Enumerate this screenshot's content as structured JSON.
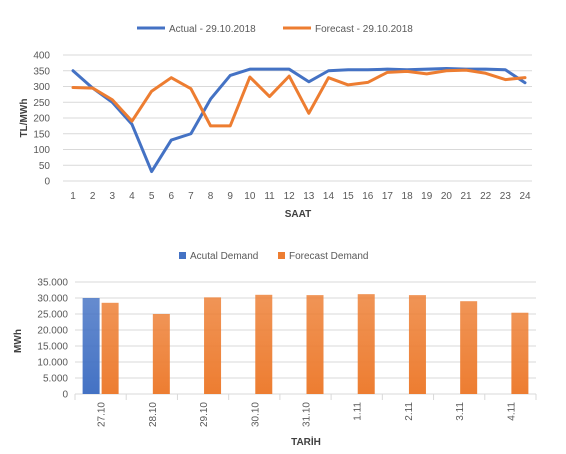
{
  "chart_data": [
    {
      "type": "line",
      "title": "",
      "xlabel": "SAAT",
      "ylabel": "TL/MWh",
      "ylim": [
        0,
        400
      ],
      "y_ticks": [
        "0",
        "50",
        "100",
        "150",
        "200",
        "250",
        "300",
        "350",
        "400"
      ],
      "grid": true,
      "legend_position": "top",
      "x": [
        "1",
        "2",
        "3",
        "4",
        "5",
        "6",
        "7",
        "8",
        "9",
        "10",
        "11",
        "12",
        "13",
        "14",
        "15",
        "16",
        "17",
        "18",
        "19",
        "20",
        "21",
        "22",
        "23",
        "24"
      ],
      "series": [
        {
          "name": "Actual - 29.10.2018",
          "color": "#4472c4",
          "values": [
            350,
            295,
            250,
            180,
            30,
            130,
            150,
            260,
            335,
            355,
            355,
            355,
            315,
            350,
            353,
            353,
            355,
            353,
            355,
            357,
            355,
            355,
            353,
            312
          ]
        },
        {
          "name": "Forecast - 29.10.2018",
          "color": "#ed7d31",
          "values": [
            297,
            295,
            258,
            190,
            285,
            328,
            293,
            175,
            175,
            330,
            268,
            333,
            215,
            328,
            305,
            313,
            345,
            348,
            340,
            350,
            352,
            342,
            322,
            328
          ]
        }
      ]
    },
    {
      "type": "bar",
      "title": "",
      "xlabel": "TARİH",
      "ylabel": "MWh",
      "ylim": [
        0,
        35000
      ],
      "y_ticks": [
        "0",
        "5.000",
        "10.000",
        "15.000",
        "20.000",
        "25.000",
        "30.000",
        "35.000"
      ],
      "grid": true,
      "legend_position": "top",
      "categories": [
        "27.10",
        "28.10",
        "29.10",
        "30.10",
        "31.10",
        "1.11",
        "2.11",
        "3.11",
        "4.11"
      ],
      "series": [
        {
          "name": "Acutal Demand",
          "color": "#4472c4",
          "values": [
            30000,
            null,
            null,
            null,
            null,
            null,
            null,
            null,
            null
          ]
        },
        {
          "name": "Forecast Demand",
          "color": "#ed7d31",
          "values": [
            28500,
            25000,
            30200,
            31000,
            30900,
            31200,
            30900,
            29000,
            25400
          ]
        }
      ]
    }
  ]
}
